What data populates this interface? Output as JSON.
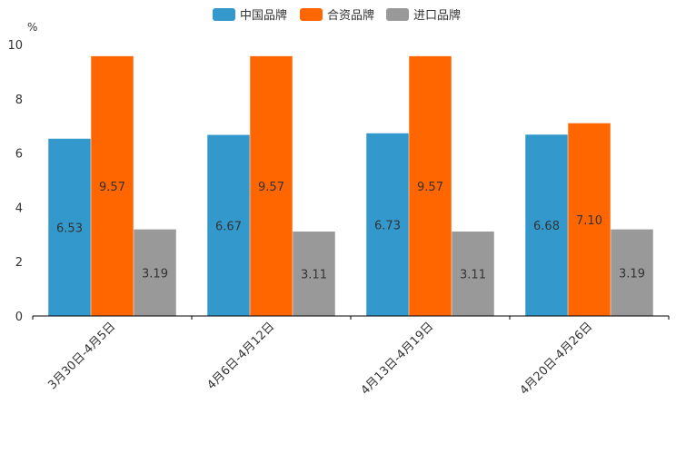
{
  "chart_data": {
    "type": "bar",
    "unit_label": "%",
    "categories": [
      "3月30日-4月5日",
      "4月6日-4月12日",
      "4月13日-4月19日",
      "4月20日-4月26日"
    ],
    "series": [
      {
        "name": "中国品牌",
        "color": "#3399cc",
        "values": [
          6.53,
          6.67,
          6.73,
          6.68
        ],
        "labels": [
          "6.53",
          "6.67",
          "6.73",
          "6.68"
        ]
      },
      {
        "name": "合资品牌",
        "color": "#ff6600",
        "values": [
          9.57,
          9.57,
          9.57,
          7.1
        ],
        "labels": [
          "9.57",
          "9.57",
          "9.57",
          "7.10"
        ]
      },
      {
        "name": "进口品牌",
        "color": "#999999",
        "values": [
          3.19,
          3.11,
          3.11,
          3.19
        ],
        "labels": [
          "3.19",
          "3.11",
          "3.11",
          "3.19"
        ]
      }
    ],
    "ylim": [
      0,
      10
    ],
    "yticks": [
      "0",
      "2",
      "4",
      "6",
      "8",
      "10"
    ],
    "legend_position": "top-center",
    "grid": false
  }
}
